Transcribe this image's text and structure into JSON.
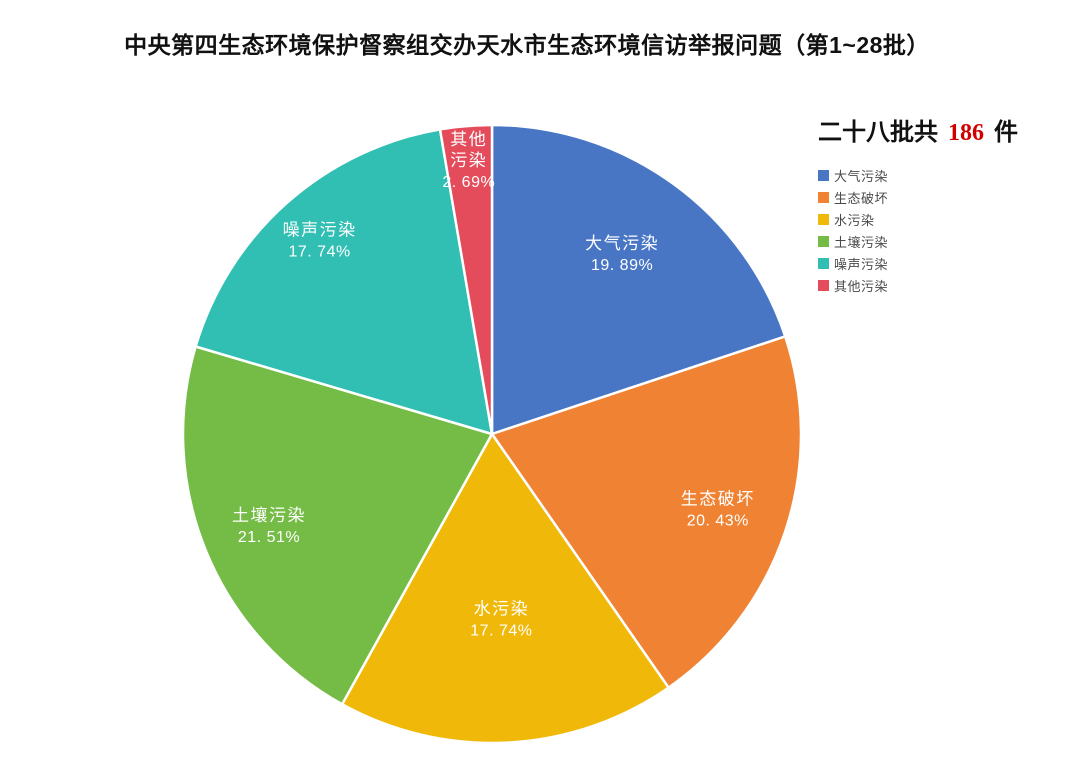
{
  "title": "中央第四生态环境保护督察组交办天水市生态环境信访举报问题（第1~28批）",
  "legend": {
    "header": {
      "prefix": "二十八批共",
      "total": "186",
      "suffix": "件"
    },
    "total_color": "#d10000",
    "items": [
      {
        "label": "大气污染",
        "color": "#4876C5"
      },
      {
        "label": "生态破坏",
        "color": "#EF8333"
      },
      {
        "label": "水污染",
        "color": "#F0B90A"
      },
      {
        "label": "土壤污染",
        "color": "#74BC45"
      },
      {
        "label": "噪声污染",
        "color": "#30BFB2"
      },
      {
        "label": "其他污染",
        "color": "#E44C5C"
      }
    ]
  },
  "chart_data": {
    "type": "pie",
    "title": "中央第四生态环境保护督察组交办天水市生态环境信访举报问题（第1~28批）",
    "categories": [
      "大气污染",
      "生态破坏",
      "水污染",
      "土壤污染",
      "噪声污染",
      "其他污染"
    ],
    "values": [
      19.89,
      20.43,
      17.74,
      21.51,
      17.74,
      2.69
    ],
    "value_unit": "%",
    "total_cases": "186",
    "colors": [
      "#4876C5",
      "#EF8333",
      "#F0B90A",
      "#74BC45",
      "#30BFB2",
      "#E44C5C"
    ],
    "start_angle": "top-clockwise",
    "legend_position": "right",
    "slice_labels": [
      {
        "lines": [
          "大气污染"
        ],
        "percent_text": "19. 89%",
        "label_r": 0.72
      },
      {
        "lines": [
          "生态破坏"
        ],
        "percent_text": "20. 43%",
        "label_r": 0.77
      },
      {
        "lines": [
          "水污染"
        ],
        "percent_text": "17. 74%",
        "label_r": 0.6
      },
      {
        "lines": [
          "土壤污染"
        ],
        "percent_text": "21. 51%",
        "label_r": 0.78
      },
      {
        "lines": [
          "噪声污染"
        ],
        "percent_text": "17. 74%",
        "label_r": 0.84
      },
      {
        "lines": [
          "其他",
          "污染"
        ],
        "percent_text": "2. 69%",
        "label_r": 0.89
      }
    ]
  }
}
